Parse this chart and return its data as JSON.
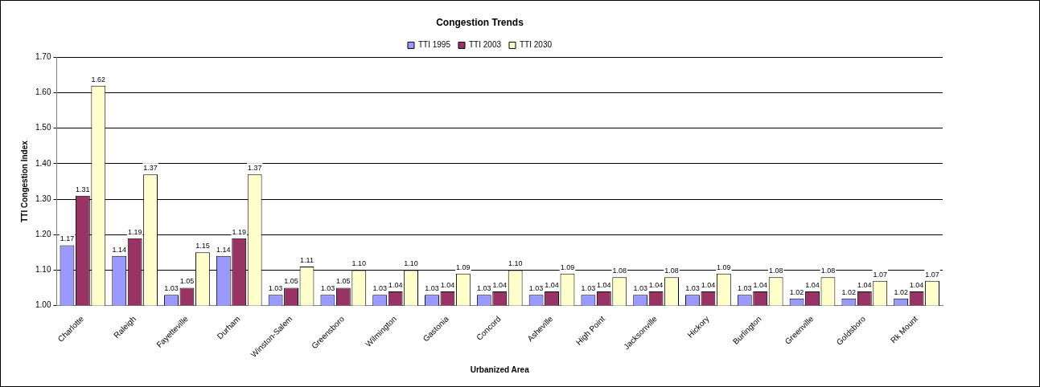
{
  "chart_data": {
    "type": "bar",
    "title": "Congestion Trends",
    "xlabel": "Urbanized Area",
    "ylabel": "TTI Congestion Index",
    "categories": [
      "Charlotte",
      "Raleigh",
      "Fayetteville",
      "Durham",
      "Winston-Salem",
      "Greensboro",
      "Wilmington",
      "Gastonia",
      "Concord",
      "Asheville",
      "High Point",
      "Jacksonville",
      "Hickory",
      "Burlington",
      "Greenville",
      "Goldsboro",
      "Rk Mount"
    ],
    "series": [
      {
        "name": "TTI 1995",
        "color": "#9999ff",
        "values": [
          1.17,
          1.14,
          1.03,
          1.14,
          1.03,
          1.03,
          1.03,
          1.03,
          1.03,
          1.03,
          1.03,
          1.03,
          1.03,
          1.03,
          1.02,
          1.02,
          1.02
        ],
        "value_labels": [
          "1.17",
          "1.14",
          "1.03",
          "1.14",
          "1.03",
          "1.03",
          "1.03",
          "1.03",
          "1.03",
          "1.03",
          "1.03",
          "1.03",
          "1.03",
          "1.03",
          "1.02",
          "1.02",
          "1.02"
        ]
      },
      {
        "name": "TTI 2003",
        "color": "#993366",
        "values": [
          1.31,
          1.19,
          1.05,
          1.19,
          1.05,
          1.05,
          1.04,
          1.04,
          1.04,
          1.04,
          1.04,
          1.04,
          1.04,
          1.04,
          1.04,
          1.04,
          1.04
        ],
        "value_labels": [
          "1.31",
          "1.19",
          "1.05",
          "1.19",
          "1.05",
          "1.05",
          "1.04",
          "1.04",
          "1.04",
          "1.04",
          "1.04",
          "1.04",
          "1.04",
          "1.04",
          "1.04",
          "1.04",
          "1.04"
        ]
      },
      {
        "name": "TTI 2030",
        "color": "#ffffcc",
        "values": [
          1.62,
          1.37,
          1.15,
          1.37,
          1.11,
          1.1,
          1.1,
          1.09,
          1.1,
          1.09,
          1.08,
          1.08,
          1.09,
          1.08,
          1.08,
          1.07,
          1.07
        ],
        "value_labels": [
          "1.62",
          "1.37",
          "1.15",
          "1.37",
          "1.11",
          "1.10",
          "1.10",
          "1.09",
          "1.10",
          "1.09",
          "1.08",
          "1.08",
          "1.09",
          "1.08",
          "1.08",
          "1.07",
          "1.07"
        ]
      }
    ],
    "ylim": [
      1,
      1.7
    ],
    "yticks": [
      {
        "value": 1,
        "label": "1.00"
      },
      {
        "value": 1.1,
        "label": "1.10"
      },
      {
        "value": 1.2,
        "label": "1.20"
      },
      {
        "value": 1.3,
        "label": "1.30"
      },
      {
        "value": 1.4,
        "label": "1.40"
      },
      {
        "value": 1.5,
        "label": "1.50"
      },
      {
        "value": 1.6,
        "label": "1.60"
      },
      {
        "value": 1.7,
        "label": "1.70"
      }
    ],
    "grid": "y",
    "legend": "top"
  }
}
